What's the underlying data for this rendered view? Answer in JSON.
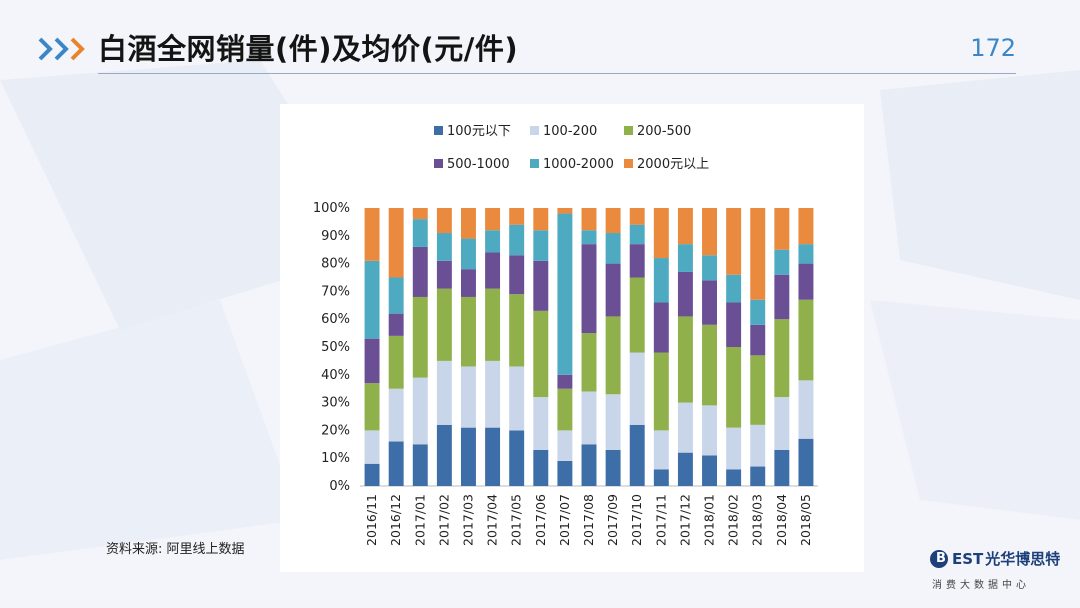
{
  "header": {
    "title": "白酒全网销量(件)及均价(元/件)",
    "page_number": "172"
  },
  "source": "资料来源: 阿里线上数据",
  "logo": {
    "brand_mark": "B",
    "brand_letters": "EST",
    "brand_name": "光华博思特",
    "tagline": "消费大数据中心"
  },
  "colors": {
    "accent": "#3b86c6",
    "header_rule": "#9aa9c8"
  },
  "chart_data": {
    "type": "bar",
    "stacked": true,
    "normalized": true,
    "title": "",
    "xlabel": "",
    "ylabel": "",
    "ylim": [
      0,
      100
    ],
    "yticks": [
      "0%",
      "10%",
      "20%",
      "30%",
      "40%",
      "50%",
      "60%",
      "70%",
      "80%",
      "90%",
      "100%"
    ],
    "legend_position": "top",
    "categories": [
      "2016/11",
      "2016/12",
      "2017/01",
      "2017/02",
      "2017/03",
      "2017/04",
      "2017/05",
      "2017/06",
      "2017/07",
      "2017/08",
      "2017/09",
      "2017/10",
      "2017/11",
      "2017/12",
      "2018/01",
      "2018/02",
      "2018/03",
      "2018/04",
      "2018/05"
    ],
    "series": [
      {
        "name": "100元以下",
        "color": "#3e6ea8",
        "values": [
          8,
          16,
          15,
          22,
          21,
          21,
          20,
          13,
          9,
          15,
          13,
          22,
          6,
          12,
          11,
          6,
          7,
          13,
          17
        ]
      },
      {
        "name": "100-200",
        "color": "#c9d6ea",
        "values": [
          12,
          19,
          24,
          23,
          22,
          24,
          23,
          19,
          11,
          19,
          20,
          26,
          14,
          18,
          18,
          15,
          15,
          19,
          21
        ]
      },
      {
        "name": "200-500",
        "color": "#8fb04a",
        "values": [
          17,
          19,
          29,
          26,
          25,
          26,
          26,
          31,
          15,
          21,
          28,
          27,
          28,
          31,
          29,
          29,
          25,
          28,
          29
        ]
      },
      {
        "name": "500-1000",
        "color": "#6a4f95",
        "values": [
          16,
          8,
          18,
          10,
          10,
          13,
          14,
          18,
          5,
          32,
          19,
          12,
          18,
          16,
          16,
          16,
          11,
          16,
          13
        ]
      },
      {
        "name": "1000-2000",
        "color": "#4eaac0",
        "values": [
          28,
          13,
          10,
          10,
          11,
          8,
          11,
          11,
          58,
          5,
          11,
          7,
          16,
          10,
          9,
          10,
          9,
          9,
          7
        ]
      },
      {
        "name": "2000元以上",
        "color": "#ea8a3e",
        "values": [
          19,
          25,
          4,
          9,
          11,
          8,
          6,
          8,
          2,
          8,
          9,
          6,
          18,
          13,
          17,
          24,
          33,
          15,
          13
        ]
      }
    ]
  }
}
